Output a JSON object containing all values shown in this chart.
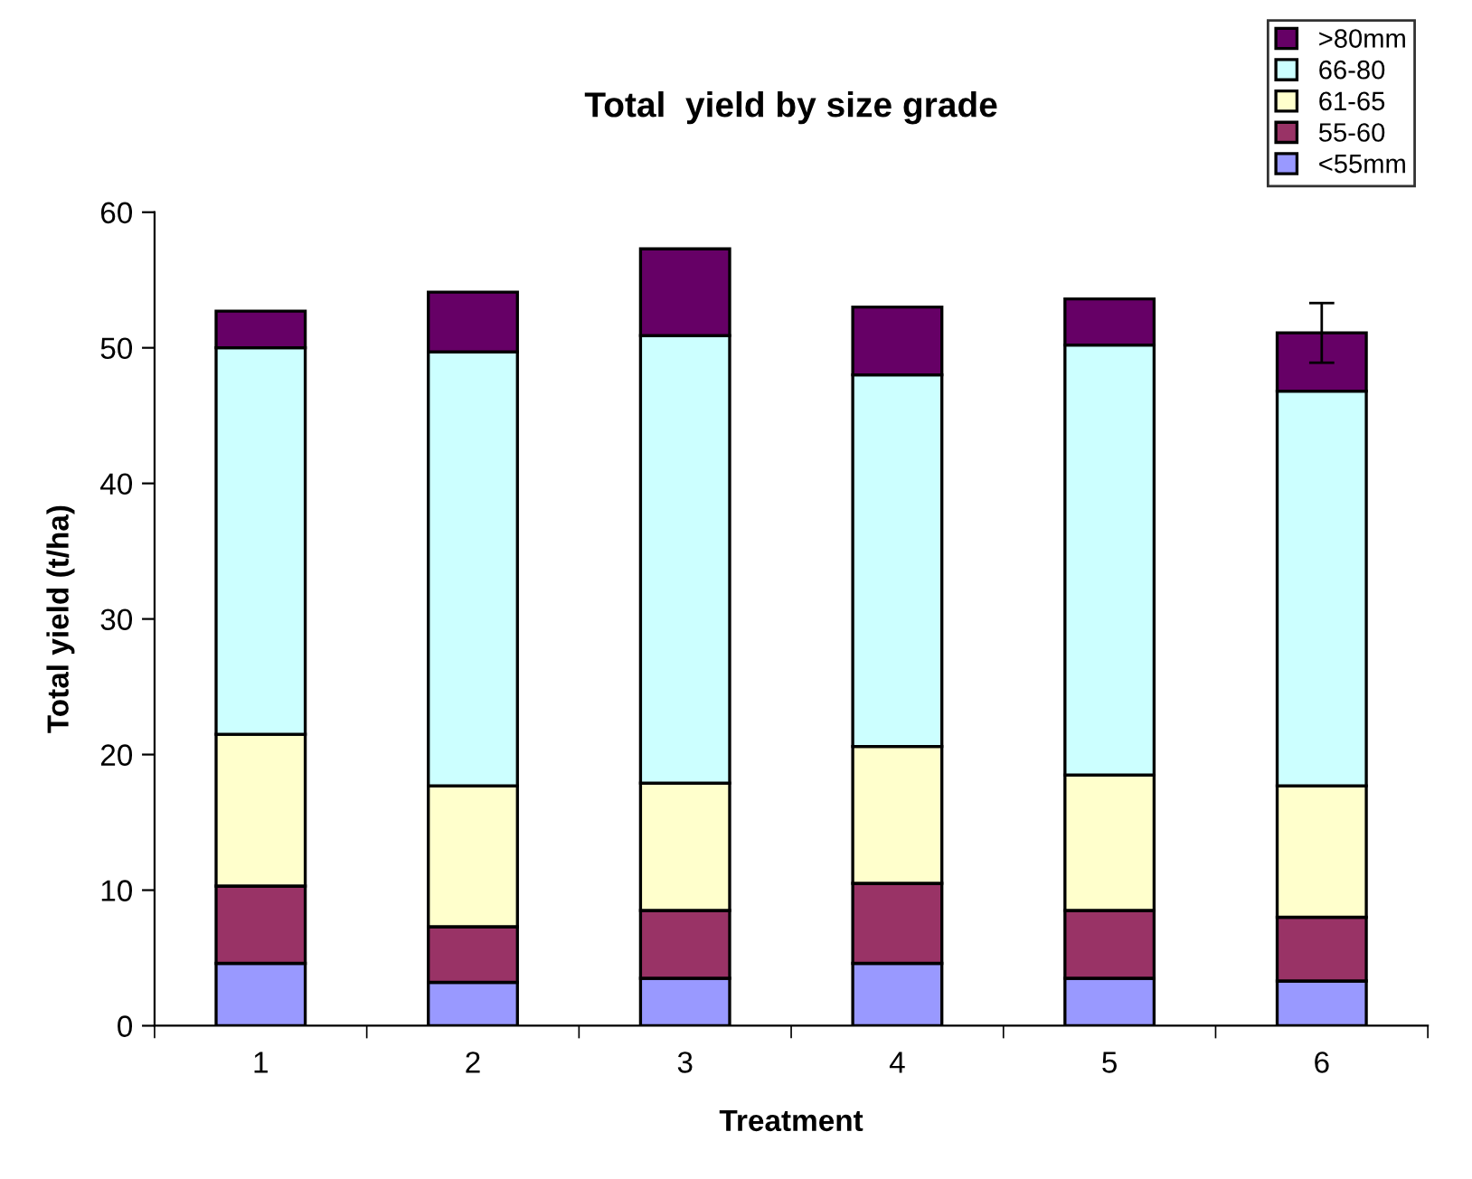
{
  "chart_data": {
    "type": "bar",
    "title": "Total  yield by size grade",
    "xlabel": "Treatment",
    "ylabel": "Total yield (t/ha)",
    "categories": [
      "1",
      "2",
      "3",
      "4",
      "5",
      "6"
    ],
    "stacked": true,
    "series": [
      {
        "name": "<55mm",
        "color": "#9999ff",
        "values": [
          4.6,
          3.2,
          3.5,
          4.6,
          3.5,
          3.3
        ]
      },
      {
        "name": "55-60",
        "color": "#993366",
        "values": [
          5.7,
          4.1,
          5.0,
          5.9,
          5.0,
          4.7
        ]
      },
      {
        "name": "61-65",
        "color": "#ffffcc",
        "values": [
          11.2,
          10.4,
          9.4,
          10.1,
          10.0,
          9.7
        ]
      },
      {
        "name": "66-80",
        "color": "#ccffff",
        "values": [
          28.5,
          32.0,
          33.0,
          27.4,
          31.7,
          29.1
        ]
      },
      {
        "name": ">80mm",
        "color": "#660066",
        "values": [
          2.7,
          4.4,
          6.4,
          5.0,
          3.4,
          4.3
        ],
        "errors": [
          null,
          null,
          null,
          null,
          null,
          2.2
        ]
      }
    ],
    "ylim": [
      0,
      60
    ],
    "yticks": [
      0,
      10,
      20,
      30,
      40,
      50,
      60
    ],
    "grid": false,
    "legend": "top right"
  }
}
